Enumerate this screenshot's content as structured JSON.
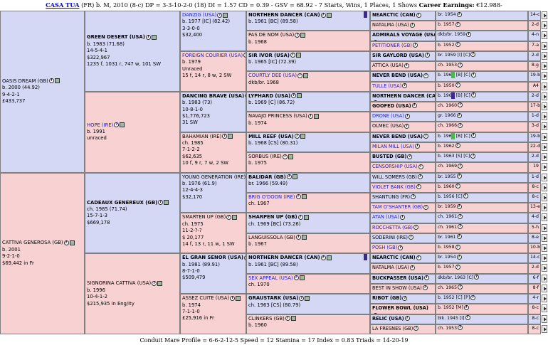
{
  "header": {
    "name": "CASA TUA",
    "details": "(FR) b. M, 2010 (8-c) DP = 3-3-10-2-0 (18) DI = 1.57  CD = 0.39 - GSV = 68.92 - 7 Starts, Wins, 1 Places, 1 Shows",
    "earnings_label": "Career Earnings:",
    "earnings": "€12.988-"
  },
  "footer": "Conduit Mare Profile = 6-6-2-12-5  Speed = 12  Stamina = 17  Index = 0.83  Triads = 14-20-19",
  "gen1": [
    {
      "name": "OASIS DREAM (GB)",
      "lines": [
        "b. 2000 (44.92)",
        "9-4-2-1",
        "£433,737"
      ]
    },
    {
      "name": "CATTIVA GENEROSA (GB)",
      "lines": [
        "b. 2001",
        "9-2-1-0",
        "$69,442 in Fr"
      ]
    }
  ],
  "gen2": [
    {
      "name": "GREEN DESERT (USA)",
      "lines": [
        "b. 1983 (71.68)",
        "14-5-4-1",
        "$322,967",
        "1235 f, 1031 r, 747 w, 101 SW"
      ]
    },
    {
      "name": "HOPE (IRE)",
      "lines": [
        "b. 1991",
        "unraced"
      ]
    },
    {
      "name": "CADEAUX GENEREUX (GB)",
      "lines": [
        "ch. 1985 (71.74)",
        "15-7-1-3",
        "$669,178"
      ]
    },
    {
      "name": "SIGNORINA CATTIVA (USA)",
      "lines": [
        "b. 1996",
        "10-4-1-2",
        "$215,935 in Eng/Ity"
      ]
    }
  ],
  "gen3": [
    {
      "name": "DANZIG (USA)",
      "lines": [
        "b. 1977 [IC] (82.42)",
        "3-3-0-0",
        "$32,400"
      ]
    },
    {
      "name": "FOREIGN COURIER (USA)",
      "lines": [
        "b. 1979",
        "Unraced",
        "15 f, 14 r, 8 w, 2 SW"
      ]
    },
    {
      "name": "DANCING BRAVE (USA)",
      "lines": [
        "b. 1983 (73)",
        "10-8-1-0",
        "$1,776,723",
        "31 SW"
      ]
    },
    {
      "name": "BAHAMIAN (IRE)",
      "lines": [
        "ch. 1985",
        "7-1-2-2",
        "$62,635",
        "10 f, 9 r, 7 w, 2 SW"
      ]
    },
    {
      "name": "YOUNG GENERATION (IRE)",
      "lines": [
        "b. 1976 (61.9)",
        "12-4-4-3",
        "$32,170"
      ]
    },
    {
      "name": "SMARTEN UP (GB)",
      "lines": [
        "ch. 1975",
        "11-2-?-?",
        "$ 20,177",
        "14 f, 13 r, 11 w, 1 SW"
      ]
    },
    {
      "name": "EL GRAN SENOR (USA)",
      "lines": [
        "b. 1981 (89.91)",
        "8-7-1-0",
        "$509,479"
      ]
    },
    {
      "name": "ASSEZ CUITE (USA)",
      "lines": [
        "b. 1974",
        "7-1-1-0",
        "£25,916 in Fr"
      ]
    }
  ],
  "gen4": [
    {
      "name": "NORTHERN DANCER (CAN)",
      "lines": [
        "b. 1961 [BC] (89.58)"
      ]
    },
    {
      "name": "PAS DE NOM (USA)",
      "lines": [
        "b. 1968"
      ]
    },
    {
      "name": "SIR IVOR (USA)",
      "lines": [
        "b. 1965 [IC] (72.39)"
      ]
    },
    {
      "name": "COURTLY DEE (USA)",
      "lines": [
        "dkb/br. 1968"
      ]
    },
    {
      "name": "LYPHARD (USA)",
      "lines": [
        "b. 1969 [C] (86.72)"
      ]
    },
    {
      "name": "NAVAJO PRINCESS (USA)",
      "lines": [
        "b. 1974"
      ]
    },
    {
      "name": "MILL REEF (USA)",
      "lines": [
        "b. 1968 [CS] (80.31)"
      ]
    },
    {
      "name": "SORBUS (IRE)",
      "lines": [
        "b. 1975"
      ]
    },
    {
      "name": "BALIDAR (GB)",
      "lines": [
        "br. 1966 (59.49)"
      ]
    },
    {
      "name": "BRIG O'DOON (IRE)",
      "lines": [
        "ch. 1967"
      ]
    },
    {
      "name": "SHARPEN UP (GB)",
      "lines": [
        "ch. 1969 [BC] (73.26)"
      ]
    },
    {
      "name": "LANGUISSOLA (GB)",
      "lines": [
        "b. 1967"
      ]
    },
    {
      "name": "NORTHERN DANCER (CAN)",
      "lines": [
        "b. 1961 [BC] (89.58)"
      ]
    },
    {
      "name": "SEX APPEAL (USA)",
      "lines": [
        "ch. 1970"
      ]
    },
    {
      "name": "GRAUSTARK (USA)",
      "lines": [
        "ch. 1963 [CS] (80.79)"
      ]
    },
    {
      "name": "CLINKERS (GB)",
      "lines": [
        "b. 1960"
      ]
    }
  ],
  "gen5": [
    {
      "name": "NEARCTIC (CAN)",
      "info": "br. 1954",
      "fam": "14-c"
    },
    {
      "name": "NATALMA (USA)",
      "info": "b. 1957",
      "fam": "2-d"
    },
    {
      "name": "ADMIRALS VOYAGE (USA)",
      "info": "dkb/br. 1959",
      "fam": "4-n"
    },
    {
      "name": "PETITIONER (GB)",
      "info": "b. 1952",
      "fam": "7-a"
    },
    {
      "name": "SIR GAYLORD (USA)",
      "info": "br. 1959 [I] [C]",
      "fam": "2-d"
    },
    {
      "name": "ATTICA (USA)",
      "info": "ch. 1953",
      "fam": "8-g"
    },
    {
      "name": "NEVER BEND (USA)",
      "info": "b. 1960 [B] [C]",
      "fam": "19-b"
    },
    {
      "name": "TULLE (USA)",
      "info": "b. 1950",
      "fam": "A4"
    },
    {
      "name": "NORTHERN DANCER (CAN)",
      "info": "b. 1961 [B] [C]",
      "fam": "2-d"
    },
    {
      "name": "GOOFED (USA)",
      "info": "ch. 1960",
      "fam": "17-b"
    },
    {
      "name": "DRONE (USA)",
      "info": "gr. 1966",
      "fam": "1-d"
    },
    {
      "name": "OLMEC (USA)",
      "info": "ch. 1966",
      "fam": "3-d"
    },
    {
      "name": "NEVER BEND (USA)",
      "info": "b. 1960 [B] [C]",
      "fam": "19-b"
    },
    {
      "name": "MILAN MILL (USA)",
      "info": "b. 1962",
      "fam": "22-d"
    },
    {
      "name": "BUSTED (GB)",
      "info": "b. 1963 [S] [C]",
      "fam": "2-d"
    },
    {
      "name": "CENSORSHIP (USA)",
      "info": "ch. 1969",
      "fam": "19"
    },
    {
      "name": "WILL SOMERS (GB)",
      "info": "br. 1955",
      "fam": "1-d"
    },
    {
      "name": "VIOLET BANK (GB)",
      "info": "b. 1960",
      "fam": "8-c"
    },
    {
      "name": "SHANTUNG (FR)",
      "info": "b. 1956 [C]",
      "fam": "8-c"
    },
    {
      "name": "TAM O'SHANTER (GB)",
      "info": "br. 1959",
      "fam": "13-e"
    },
    {
      "name": "ATAN (USA)",
      "info": "ch. 1961",
      "fam": "4-d"
    },
    {
      "name": "ROCCHETTA (GB)",
      "info": "ch. 1961",
      "fam": "5-h"
    },
    {
      "name": "SODERINI (IRE)",
      "info": "br. 1961",
      "fam": "8-e"
    },
    {
      "name": "POSH (GB)",
      "info": "b. 1958",
      "fam": "10-b"
    },
    {
      "name": "NEARCTIC (CAN)",
      "info": "br. 1954",
      "fam": "14-c"
    },
    {
      "name": "NATALMA (USA)",
      "info": "b. 1957",
      "fam": "2-d"
    },
    {
      "name": "BUCKPASSER (USA)",
      "info": "dkb/br. 1963 [C]",
      "fam": "6-f"
    },
    {
      "name": "BEST IN SHOW (USA)",
      "info": "ch. 1965",
      "fam": "8-f"
    },
    {
      "name": "RIBOT (GB)",
      "info": "b. 1952 [C] [P]",
      "fam": "4-r"
    },
    {
      "name": "FLOWER BOWL (USA)",
      "info": "b. 1952 [M]",
      "fam": "8-c"
    },
    {
      "name": "RELIC (USA)",
      "info": "blk. 1945 [I]",
      "fam": "8-c"
    },
    {
      "name": "LA FRESNES (GB)",
      "info": "ch. 1953",
      "fam": "8-c"
    }
  ]
}
